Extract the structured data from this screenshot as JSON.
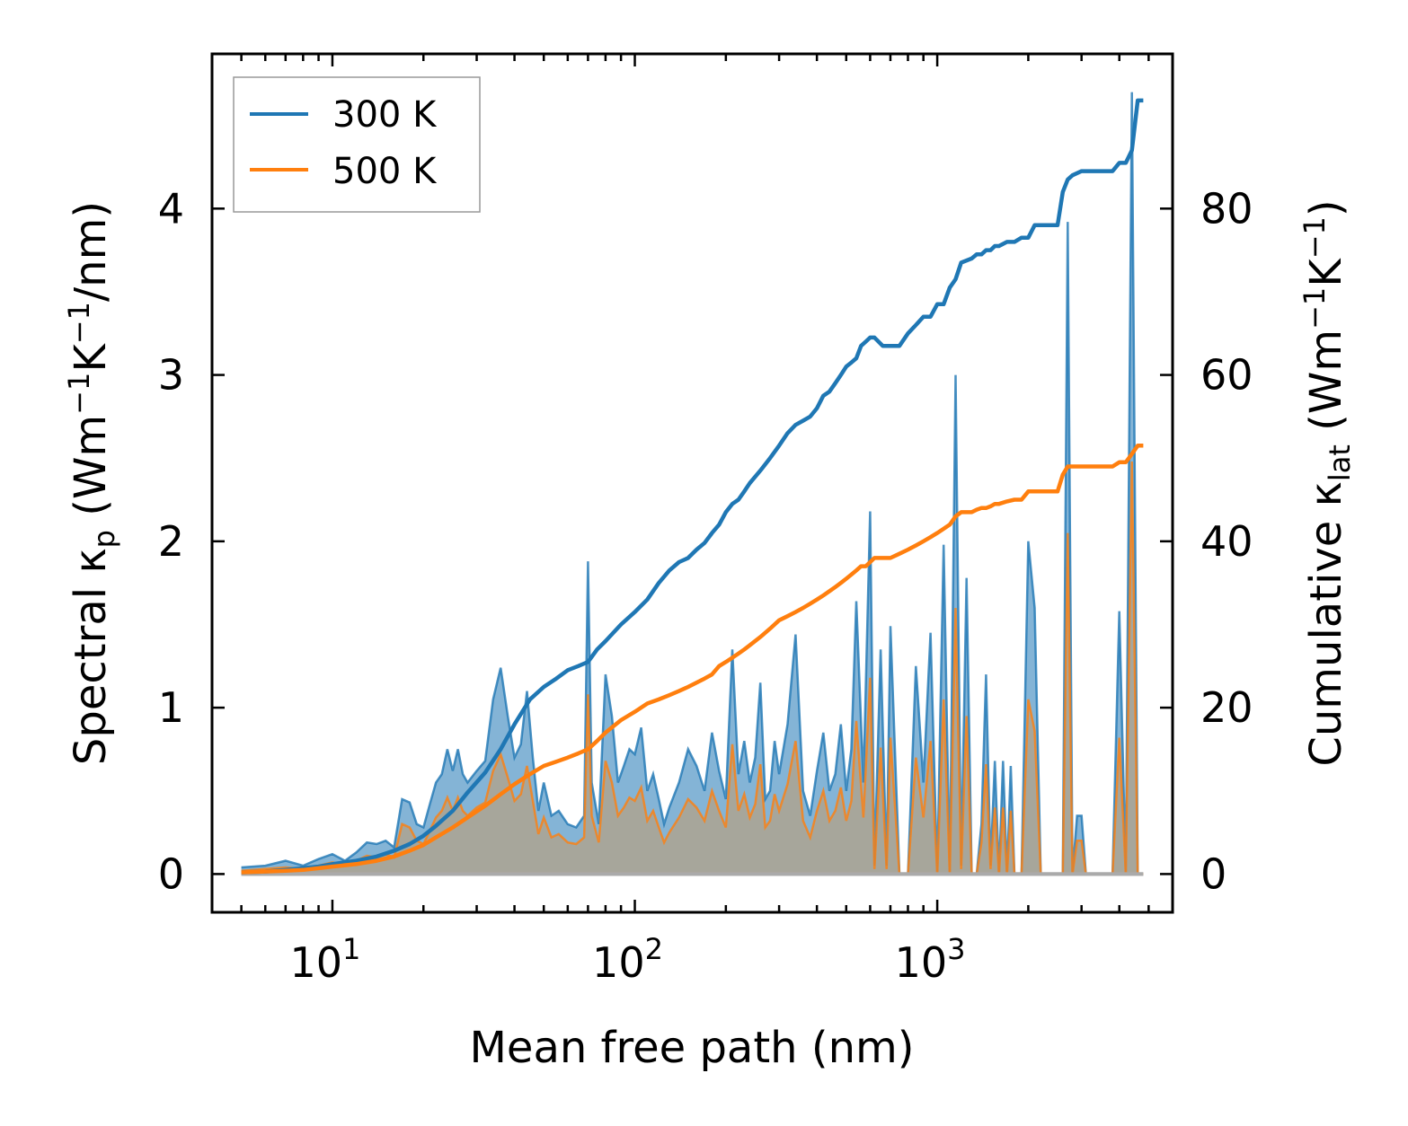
{
  "chart_data": {
    "type": "line",
    "xlabel": "Mean free path (nm)",
    "ylabel_left": "Spectral κ_p (Wm^-1K^-1/nm)",
    "ylabel_right": "Cumulative κ_lat (Wm^-1K^-1)",
    "xscale": "log",
    "xlim": [
      4.0,
      6000
    ],
    "ylim_left": [
      -0.23,
      4.93
    ],
    "ylim_right": [
      -4.6,
      98.6
    ],
    "x_tick_labels": [
      {
        "value": 10,
        "base": "10",
        "exp": "1"
      },
      {
        "value": 100,
        "base": "10",
        "exp": "2"
      },
      {
        "value": 1000,
        "base": "10",
        "exp": "3"
      }
    ],
    "y_left_ticks": [
      0,
      1,
      2,
      3,
      4
    ],
    "y_left_tick_labels": [
      "0",
      "1",
      "2",
      "3",
      "4"
    ],
    "y_right_ticks": [
      0,
      20,
      40,
      60,
      80
    ],
    "y_right_tick_labels": [
      "0",
      "20",
      "40",
      "60",
      "80"
    ],
    "legend": {
      "position": "top-left",
      "entries": [
        "300 K",
        "500 K"
      ]
    },
    "colors": {
      "300 K": "#1f77b4",
      "500 K": "#ff7f0e",
      "fill_500": "#c49a6c"
    },
    "series": [
      {
        "name": "300 K",
        "kind": "spectral",
        "axis": "left",
        "x": [
          5,
          6,
          7,
          8,
          9,
          10,
          11,
          12,
          13,
          14,
          15,
          16,
          17,
          18,
          19,
          20,
          21,
          22,
          23,
          24,
          25,
          26,
          27,
          28,
          30,
          32,
          34,
          36,
          38,
          40,
          42,
          44,
          46,
          48,
          50,
          53,
          56,
          60,
          64,
          68,
          70,
          72,
          76,
          80,
          84,
          88,
          92,
          96,
          100,
          105,
          110,
          115,
          120,
          125,
          130,
          140,
          150,
          160,
          170,
          180,
          190,
          200,
          210,
          220,
          230,
          240,
          250,
          260,
          270,
          280,
          290,
          300,
          320,
          340,
          360,
          380,
          400,
          420,
          440,
          460,
          480,
          500,
          520,
          540,
          570,
          600,
          620,
          650,
          680,
          700,
          750,
          800,
          850,
          900,
          950,
          1000,
          1050,
          1100,
          1150,
          1200,
          1250,
          1300,
          1350,
          1400,
          1450,
          1500,
          1550,
          1600,
          1650,
          1700,
          1750,
          1800,
          1900,
          2000,
          2100,
          2200,
          2300,
          2400,
          2500,
          2600,
          2700,
          2800,
          2900,
          3000,
          3100,
          3200,
          3400,
          3600,
          3800,
          4000,
          4200,
          4400,
          4600,
          4800
        ],
        "values": [
          0.04,
          0.05,
          0.08,
          0.05,
          0.09,
          0.12,
          0.08,
          0.13,
          0.19,
          0.18,
          0.2,
          0.16,
          0.45,
          0.43,
          0.3,
          0.28,
          0.42,
          0.55,
          0.6,
          0.75,
          0.62,
          0.75,
          0.6,
          0.55,
          0.62,
          0.68,
          1.05,
          1.24,
          0.95,
          0.7,
          0.78,
          1.1,
          0.7,
          0.38,
          0.55,
          0.35,
          0.38,
          0.3,
          0.28,
          0.35,
          1.88,
          0.55,
          0.3,
          1.2,
          0.95,
          0.55,
          0.65,
          0.75,
          0.72,
          0.88,
          0.5,
          0.6,
          0.45,
          0.3,
          0.4,
          0.55,
          0.75,
          0.65,
          0.5,
          0.85,
          0.62,
          0.45,
          1.35,
          0.6,
          0.8,
          0.55,
          0.7,
          1.15,
          0.45,
          0.5,
          0.8,
          0.6,
          0.9,
          1.44,
          0.5,
          0.35,
          0.62,
          0.85,
          0.5,
          0.6,
          0.9,
          0.5,
          0.75,
          1.64,
          0.55,
          2.18,
          0.05,
          1.35,
          0.05,
          1.49,
          0.0,
          0.0,
          1.25,
          0.55,
          1.45,
          0.0,
          1.98,
          0.0,
          3.0,
          0.05,
          1.78,
          0.0,
          0.0,
          0.3,
          1.2,
          0.05,
          0.68,
          0.0,
          0.68,
          0.0,
          0.65,
          0.0,
          0.0,
          2.0,
          1.6,
          0.0,
          0.0,
          0.0,
          0.0,
          0.0,
          3.92,
          0.0,
          0.35,
          0.35,
          0.0,
          0.0,
          0.0,
          0.0,
          0.0,
          1.58,
          0.0,
          4.7,
          0.0,
          0.0
        ]
      },
      {
        "name": "500 K",
        "kind": "spectral",
        "axis": "left",
        "x": [
          5,
          6,
          7,
          8,
          9,
          10,
          11,
          12,
          13,
          14,
          15,
          16,
          17,
          18,
          19,
          20,
          21,
          22,
          23,
          24,
          25,
          26,
          27,
          28,
          30,
          32,
          34,
          36,
          38,
          40,
          42,
          44,
          46,
          48,
          50,
          53,
          56,
          60,
          64,
          68,
          70,
          72,
          76,
          80,
          84,
          88,
          92,
          96,
          100,
          105,
          110,
          115,
          120,
          125,
          130,
          140,
          150,
          160,
          170,
          180,
          190,
          200,
          210,
          220,
          230,
          240,
          250,
          260,
          270,
          280,
          290,
          300,
          320,
          340,
          360,
          380,
          400,
          420,
          440,
          460,
          480,
          500,
          520,
          540,
          570,
          600,
          620,
          650,
          680,
          700,
          750,
          800,
          850,
          900,
          950,
          1000,
          1050,
          1100,
          1150,
          1200,
          1250,
          1300,
          1350,
          1400,
          1450,
          1500,
          1550,
          1600,
          1650,
          1700,
          1750,
          1800,
          1900,
          2000,
          2100,
          2200,
          2300,
          2400,
          2500,
          2600,
          2700,
          2800,
          2900,
          3000,
          3100,
          3200,
          3400,
          3600,
          3800,
          4000,
          4200,
          4400,
          4600,
          4800
        ],
        "values": [
          0.02,
          0.03,
          0.04,
          0.03,
          0.05,
          0.07,
          0.05,
          0.08,
          0.11,
          0.1,
          0.12,
          0.1,
          0.3,
          0.28,
          0.2,
          0.18,
          0.26,
          0.34,
          0.38,
          0.46,
          0.38,
          0.46,
          0.38,
          0.35,
          0.4,
          0.43,
          0.62,
          0.72,
          0.58,
          0.44,
          0.48,
          0.65,
          0.44,
          0.24,
          0.34,
          0.22,
          0.24,
          0.19,
          0.18,
          0.22,
          1.08,
          0.35,
          0.19,
          0.68,
          0.55,
          0.35,
          0.4,
          0.46,
          0.44,
          0.52,
          0.32,
          0.38,
          0.28,
          0.19,
          0.25,
          0.34,
          0.45,
          0.4,
          0.32,
          0.5,
          0.38,
          0.28,
          0.78,
          0.38,
          0.48,
          0.34,
          0.42,
          0.66,
          0.28,
          0.32,
          0.48,
          0.38,
          0.54,
          0.8,
          0.32,
          0.22,
          0.38,
          0.5,
          0.32,
          0.38,
          0.52,
          0.32,
          0.44,
          0.92,
          0.34,
          1.18,
          0.03,
          0.76,
          0.03,
          0.82,
          0.0,
          0.0,
          0.7,
          0.34,
          0.8,
          0.0,
          1.05,
          0.0,
          1.6,
          0.03,
          0.95,
          0.0,
          0.0,
          0.19,
          0.66,
          0.03,
          0.4,
          0.0,
          0.4,
          0.0,
          0.38,
          0.0,
          0.0,
          1.05,
          0.86,
          0.0,
          0.0,
          0.0,
          0.0,
          0.0,
          2.05,
          0.0,
          0.2,
          0.2,
          0.0,
          0.0,
          0.0,
          0.0,
          0.0,
          0.82,
          0.0,
          2.48,
          0.0,
          0.0
        ]
      },
      {
        "name": "300 K",
        "kind": "cumulative",
        "axis": "right",
        "x": [
          5,
          6,
          7,
          8,
          9,
          10,
          12,
          14,
          16,
          18,
          20,
          22,
          25,
          28,
          32,
          36,
          40,
          45,
          50,
          55,
          60,
          65,
          70,
          75,
          80,
          90,
          100,
          110,
          120,
          130,
          140,
          150,
          160,
          170,
          180,
          190,
          200,
          210,
          220,
          230,
          240,
          260,
          280,
          300,
          320,
          340,
          360,
          380,
          400,
          420,
          440,
          460,
          480,
          500,
          520,
          540,
          560,
          580,
          600,
          620,
          660,
          700,
          750,
          800,
          850,
          900,
          950,
          1000,
          1050,
          1100,
          1150,
          1200,
          1300,
          1350,
          1400,
          1450,
          1500,
          1550,
          1600,
          1700,
          1800,
          1900,
          2000,
          2100,
          2300,
          2500,
          2600,
          2700,
          2800,
          3000,
          3200,
          3500,
          3800,
          4000,
          4200,
          4400,
          4600,
          4800
        ],
        "values": [
          0.2,
          0.3,
          0.5,
          0.7,
          0.9,
          1.2,
          1.6,
          2.1,
          2.8,
          3.6,
          4.6,
          5.8,
          7.6,
          9.8,
          12.2,
          15.0,
          18.0,
          21.0,
          22.5,
          23.5,
          24.5,
          25.0,
          25.5,
          27.0,
          28.0,
          30.0,
          31.5,
          33.0,
          35.0,
          36.5,
          37.5,
          38.0,
          39.0,
          39.8,
          41.0,
          42.0,
          43.5,
          44.5,
          45.0,
          46.0,
          47.0,
          48.5,
          50.0,
          51.5,
          53.0,
          54.0,
          54.5,
          55.0,
          56.0,
          57.5,
          58.0,
          59.0,
          60.0,
          61.0,
          61.5,
          62.0,
          63.5,
          64.0,
          64.5,
          64.5,
          63.5,
          63.5,
          63.5,
          65.0,
          66.0,
          67.0,
          67.0,
          68.5,
          68.5,
          70.5,
          71.5,
          73.5,
          74.0,
          74.5,
          74.5,
          75.0,
          75.0,
          75.5,
          75.5,
          76.0,
          76.0,
          76.5,
          76.5,
          78.0,
          78.0,
          78.0,
          82.0,
          83.5,
          84.0,
          84.5,
          84.5,
          84.5,
          84.5,
          85.5,
          85.5,
          87.0,
          93.0,
          93.0
        ]
      },
      {
        "name": "500 K",
        "kind": "cumulative",
        "axis": "right",
        "x": [
          5,
          6,
          7,
          8,
          9,
          10,
          12,
          14,
          16,
          18,
          20,
          22,
          25,
          28,
          32,
          36,
          40,
          45,
          50,
          55,
          60,
          65,
          70,
          75,
          80,
          90,
          100,
          110,
          120,
          130,
          140,
          150,
          160,
          170,
          180,
          190,
          200,
          210,
          220,
          230,
          240,
          260,
          280,
          300,
          320,
          340,
          360,
          380,
          400,
          420,
          440,
          460,
          480,
          500,
          520,
          540,
          560,
          580,
          600,
          620,
          660,
          700,
          750,
          800,
          850,
          900,
          950,
          1000,
          1050,
          1100,
          1150,
          1200,
          1300,
          1350,
          1400,
          1450,
          1500,
          1550,
          1600,
          1700,
          1800,
          1900,
          2000,
          2100,
          2300,
          2500,
          2600,
          2700,
          2800,
          3000,
          3200,
          3500,
          3800,
          4000,
          4200,
          4400,
          4600,
          4800
        ],
        "values": [
          0.2,
          0.3,
          0.4,
          0.5,
          0.7,
          0.9,
          1.2,
          1.6,
          2.1,
          2.8,
          3.5,
          4.4,
          5.6,
          6.8,
          8.2,
          9.6,
          10.8,
          12.0,
          13.0,
          13.5,
          14.0,
          14.5,
          15.0,
          16.0,
          17.0,
          18.5,
          19.5,
          20.5,
          21.0,
          21.5,
          22.0,
          22.5,
          23.0,
          23.5,
          24.0,
          25.0,
          25.5,
          26.0,
          26.5,
          27.0,
          27.5,
          28.5,
          29.5,
          30.5,
          31.0,
          31.5,
          32.0,
          32.5,
          33.0,
          33.5,
          34.0,
          34.5,
          35.0,
          35.5,
          36.0,
          36.5,
          37.0,
          37.0,
          37.5,
          38.0,
          38.0,
          38.0,
          38.5,
          39.0,
          39.5,
          40.0,
          40.5,
          41.0,
          41.5,
          42.0,
          43.0,
          43.5,
          43.5,
          43.8,
          44.0,
          44.0,
          44.2,
          44.5,
          44.5,
          44.8,
          45.0,
          45.0,
          46.0,
          46.0,
          46.0,
          46.0,
          48.0,
          49.0,
          49.0,
          49.0,
          49.0,
          49.0,
          49.0,
          49.5,
          49.5,
          50.5,
          51.5,
          51.5
        ]
      }
    ]
  }
}
